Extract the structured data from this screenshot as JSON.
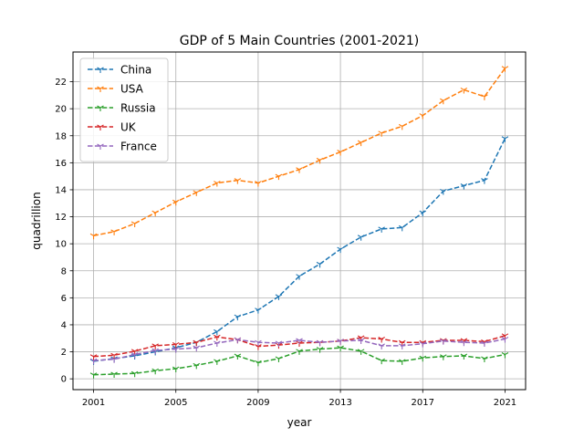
{
  "chart_data": {
    "type": "line",
    "title": "GDP of 5 Main Countries (2001-2021)",
    "xlabel": "year",
    "ylabel": "quadrillion",
    "xlim": [
      2000,
      2022
    ],
    "ylim": [
      -0.8,
      24.2
    ],
    "grid": true,
    "legend_position": "top-left",
    "x": [
      2001,
      2002,
      2003,
      2004,
      2005,
      2006,
      2007,
      2008,
      2009,
      2010,
      2011,
      2012,
      2013,
      2014,
      2015,
      2016,
      2017,
      2018,
      2019,
      2020,
      2021
    ],
    "xticks": [
      2001,
      2005,
      2009,
      2013,
      2017,
      2021
    ],
    "yticks": [
      0,
      2,
      4,
      6,
      8,
      10,
      12,
      14,
      16,
      18,
      20,
      22
    ],
    "series": [
      {
        "name": "China",
        "color": "#1f77b4",
        "values": [
          1.3,
          1.5,
          1.7,
          2.0,
          2.3,
          2.7,
          3.5,
          4.6,
          5.1,
          6.1,
          7.6,
          8.5,
          9.6,
          10.5,
          11.1,
          11.2,
          12.3,
          13.9,
          14.3,
          14.7,
          17.8
        ]
      },
      {
        "name": "USA",
        "color": "#ff7f0e",
        "values": [
          10.6,
          10.9,
          11.5,
          12.3,
          13.1,
          13.8,
          14.5,
          14.7,
          14.5,
          15.0,
          15.5,
          16.2,
          16.8,
          17.5,
          18.2,
          18.7,
          19.5,
          20.6,
          21.4,
          20.9,
          23.0
        ]
      },
      {
        "name": "Russia",
        "color": "#2ca02c",
        "values": [
          0.3,
          0.35,
          0.4,
          0.6,
          0.75,
          1.0,
          1.3,
          1.7,
          1.2,
          1.5,
          2.05,
          2.2,
          2.3,
          2.05,
          1.35,
          1.3,
          1.55,
          1.65,
          1.7,
          1.5,
          1.8
        ]
      },
      {
        "name": "UK",
        "color": "#d62728",
        "values": [
          1.65,
          1.75,
          2.05,
          2.45,
          2.55,
          2.7,
          3.1,
          2.9,
          2.4,
          2.5,
          2.65,
          2.7,
          2.8,
          3.05,
          2.95,
          2.7,
          2.7,
          2.85,
          2.85,
          2.75,
          3.2
        ]
      },
      {
        "name": "France",
        "color": "#9467bd",
        "values": [
          1.35,
          1.45,
          1.8,
          2.1,
          2.2,
          2.3,
          2.65,
          2.9,
          2.7,
          2.65,
          2.85,
          2.7,
          2.8,
          2.85,
          2.45,
          2.45,
          2.6,
          2.8,
          2.7,
          2.65,
          2.95
        ]
      }
    ]
  }
}
